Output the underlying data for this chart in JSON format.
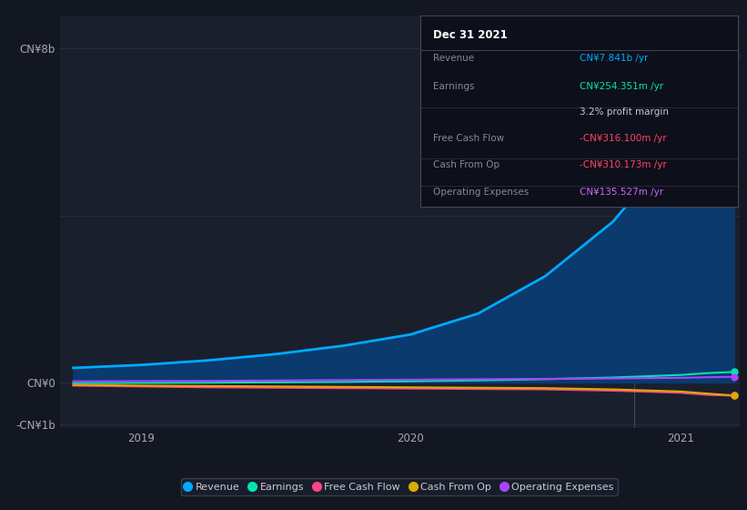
{
  "bg_color": "#131722",
  "panel_bg": "#1a1f2e",
  "infobox_bg": "#0d0f1a",
  "title_box": {
    "title": "Dec 31 2021",
    "rows": [
      {
        "label": "Revenue",
        "value": "CN¥7.841b /yr",
        "value_color": "#00aaff"
      },
      {
        "label": "Earnings",
        "value": "CN¥254.351m /yr",
        "value_color": "#00e5b0"
      },
      {
        "label": "",
        "value": "3.2% profit margin",
        "value_color": "#cccccc"
      },
      {
        "label": "Free Cash Flow",
        "value": "-CN¥316.100m /yr",
        "value_color": "#ff4466"
      },
      {
        "label": "Cash From Op",
        "value": "-CN¥310.173m /yr",
        "value_color": "#ff4466"
      },
      {
        "label": "Operating Expenses",
        "value": "CN¥135.527m /yr",
        "value_color": "#cc66ff"
      }
    ]
  },
  "ylabel_top": "CN¥8b",
  "ylabel_mid": "CN¥0",
  "ylabel_bot": "-CN¥1b",
  "ylim": [
    -1100,
    8800
  ],
  "xlim_start": 2018.7,
  "xlim_end": 2021.22,
  "divider_x": 2020.83,
  "xticks": [
    2019,
    2020,
    2021
  ],
  "series": {
    "revenue": {
      "color": "#00aaff",
      "fill_color": "#0a3a6e",
      "label": "Revenue",
      "x": [
        2018.75,
        2019.0,
        2019.25,
        2019.5,
        2019.75,
        2020.0,
        2020.25,
        2020.5,
        2020.75,
        2021.0,
        2021.1,
        2021.2
      ],
      "y": [
        350,
        420,
        530,
        680,
        880,
        1150,
        1650,
        2550,
        3850,
        5750,
        7100,
        7841
      ]
    },
    "earnings": {
      "color": "#00e5b0",
      "label": "Earnings",
      "x": [
        2018.75,
        2019.0,
        2019.25,
        2019.5,
        2019.75,
        2020.0,
        2020.25,
        2020.5,
        2020.75,
        2021.0,
        2021.1,
        2021.2
      ],
      "y": [
        -15,
        -10,
        -5,
        5,
        15,
        30,
        50,
        80,
        120,
        180,
        225,
        254
      ]
    },
    "free_cash_flow": {
      "color": "#ff4488",
      "label": "Free Cash Flow",
      "x": [
        2018.75,
        2019.0,
        2019.25,
        2019.5,
        2019.75,
        2020.0,
        2020.25,
        2020.5,
        2020.75,
        2021.0,
        2021.1,
        2021.2
      ],
      "y": [
        -75,
        -95,
        -115,
        -125,
        -135,
        -145,
        -155,
        -165,
        -195,
        -245,
        -295,
        -316
      ]
    },
    "cash_from_op": {
      "color": "#ddaa00",
      "label": "Cash From Op",
      "x": [
        2018.75,
        2019.0,
        2019.25,
        2019.5,
        2019.75,
        2020.0,
        2020.25,
        2020.5,
        2020.75,
        2021.0,
        2021.1,
        2021.2
      ],
      "y": [
        -55,
        -75,
        -85,
        -95,
        -105,
        -115,
        -125,
        -135,
        -165,
        -215,
        -265,
        -310
      ]
    },
    "operating_expenses": {
      "color": "#aa44ff",
      "label": "Operating Expenses",
      "x": [
        2018.75,
        2019.0,
        2019.25,
        2019.5,
        2019.75,
        2020.0,
        2020.25,
        2020.5,
        2020.75,
        2021.0,
        2021.1,
        2021.2
      ],
      "y": [
        28,
        33,
        38,
        48,
        58,
        68,
        78,
        88,
        98,
        112,
        126,
        136
      ]
    }
  },
  "legend": [
    {
      "label": "Revenue",
      "color": "#00aaff"
    },
    {
      "label": "Earnings",
      "color": "#00e5b0"
    },
    {
      "label": "Free Cash Flow",
      "color": "#ff4488"
    },
    {
      "label": "Cash From Op",
      "color": "#ddaa00"
    },
    {
      "label": "Operating Expenses",
      "color": "#aa44ff"
    }
  ]
}
